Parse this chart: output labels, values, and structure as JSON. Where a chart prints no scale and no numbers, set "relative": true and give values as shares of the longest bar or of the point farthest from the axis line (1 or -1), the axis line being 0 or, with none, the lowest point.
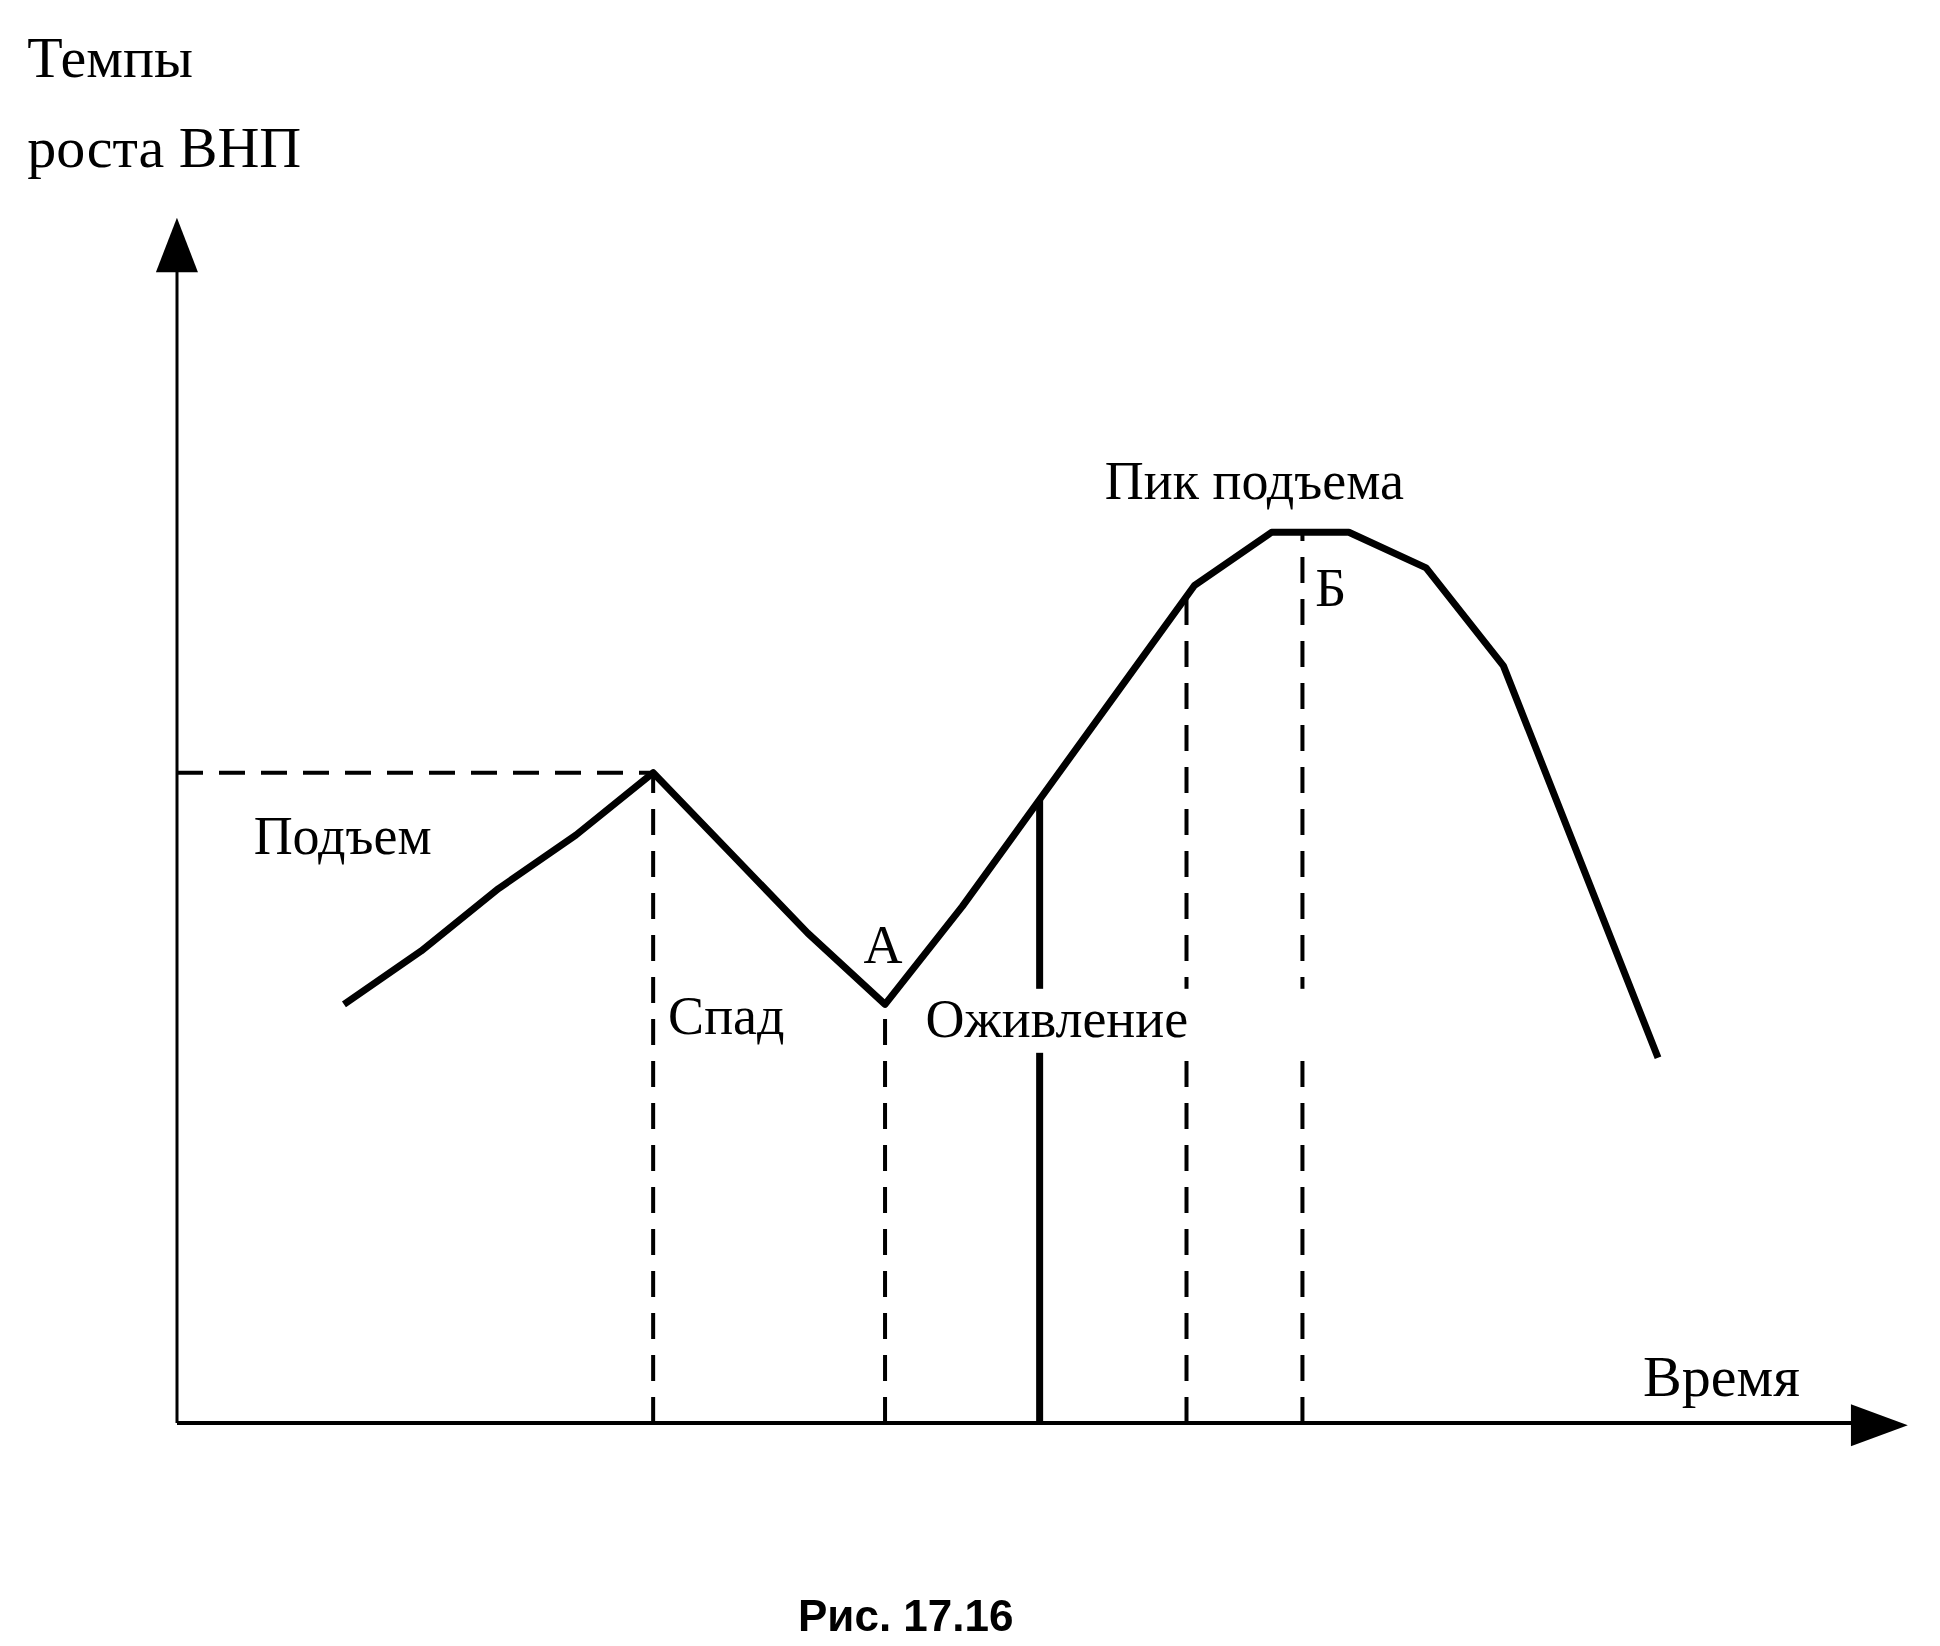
{
  "chart_data": {
    "type": "line",
    "relative": true,
    "xlabel": "Время",
    "categories": [
      null,
      null,
      null,
      null,
      null,
      null,
      null,
      null,
      null,
      null,
      null,
      null,
      null,
      null,
      null,
      null,
      null,
      null
    ],
    "series": [
      {
        "color": "#000000",
        "values": [
          0.47,
          0.53,
          0.6,
          0.66,
          0.73,
          0.64,
          0.55,
          0.47,
          0.58,
          0.7,
          0.82,
          0.94,
          1,
          1,
          0.96,
          0.85,
          0.63,
          0.41
        ]
      }
    ],
    "ref_lines": [
      {
        "axis": "y",
        "value": 0.73,
        "line_style": "dashed"
      }
    ],
    "annotations": [
      "Подъем",
      "Спад",
      "А",
      "Оживление",
      "Пик подъема",
      "Б",
      "Рис. 17.16",
      "Темпы роста ВНП"
    ],
    "marker": "none",
    "line_style": "solid",
    "grid": false
  }
}
